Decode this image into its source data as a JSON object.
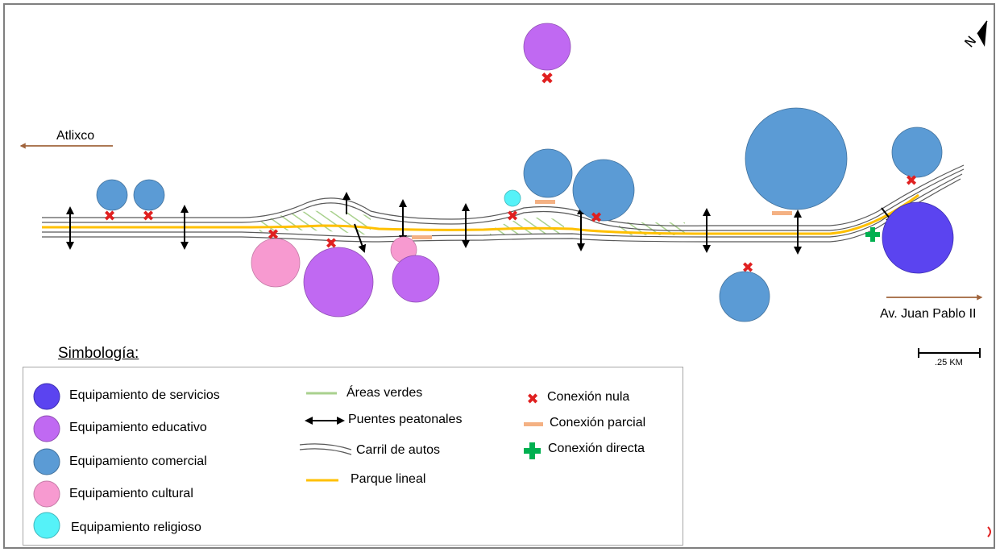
{
  "map": {
    "orientation_icon": "north-arrow-icon",
    "place_labels": {
      "west": "Atlixco",
      "east": "Av. Juan Pablo II"
    },
    "scale": {
      "label": ".25 KM"
    }
  },
  "legend": {
    "title": "Simbología:",
    "equipamiento": [
      {
        "label": "Equipamiento de servicios",
        "color": "#5b44f0"
      },
      {
        "label": "Equipamiento educativo",
        "color": "#c069f2"
      },
      {
        "label": "Equipamiento comercial",
        "color": "#5b9bd5"
      },
      {
        "label": "Equipamiento cultural",
        "color": "#f79ad0"
      },
      {
        "label": "Equipamiento religioso",
        "color": "#55f2f8"
      }
    ],
    "infraestructura": [
      {
        "label": "Áreas verdes",
        "color": "#a9d18e"
      },
      {
        "label": "Puentes peatonales",
        "color": "#000000"
      },
      {
        "label": "Carril de autos",
        "color": "#595959"
      },
      {
        "label": "Parque lineal",
        "color": "#ffc000"
      }
    ],
    "conexiones": [
      {
        "label": "Conexión nula",
        "color": "#e02020"
      },
      {
        "label": "Conexión parcial",
        "color": "#f4b183"
      },
      {
        "label": "Conexión directa",
        "color": "#00b050"
      }
    ]
  }
}
